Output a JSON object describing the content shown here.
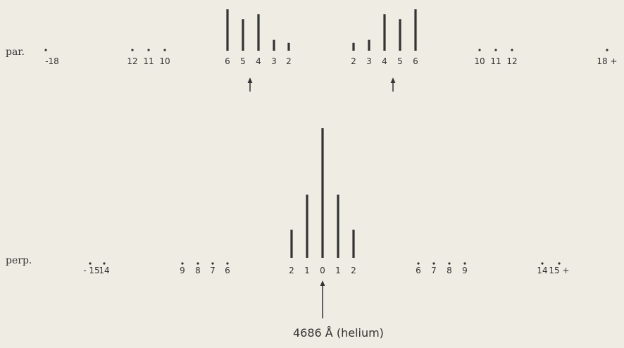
{
  "rows": {
    "par": {
      "label": "par.",
      "components": [
        {
          "label": "-18",
          "height": 0
        },
        {
          "label": "12",
          "height": 0
        },
        {
          "label": "11",
          "height": 0
        },
        {
          "label": "10",
          "height": 0
        },
        {
          "label": "6",
          "height": 4.2
        },
        {
          "label": "5",
          "height": 3.2
        },
        {
          "label": "4",
          "height": 3.7
        },
        {
          "label": "3",
          "height": 1.1
        },
        {
          "label": "2",
          "height": 0.8
        },
        {
          "label": "2",
          "height": 0.8
        },
        {
          "label": "3",
          "height": 1.1
        },
        {
          "label": "4",
          "height": 3.7
        },
        {
          "label": "5",
          "height": 3.2
        },
        {
          "label": "6",
          "height": 4.2
        },
        {
          "label": "10",
          "height": 0
        },
        {
          "label": "11",
          "height": 0
        },
        {
          "label": "12",
          "height": 0
        },
        {
          "label": "18 +",
          "height": 0
        }
      ]
    },
    "perp": {
      "label": "perp.",
      "components": [
        {
          "label": "- 15",
          "height": 0
        },
        {
          "label": "14",
          "height": 0
        },
        {
          "label": "9",
          "height": 0
        },
        {
          "label": "8",
          "height": 0
        },
        {
          "label": "7",
          "height": 0
        },
        {
          "label": "6",
          "height": 0
        },
        {
          "label": "2",
          "height": 2.5
        },
        {
          "label": "1",
          "height": 5.6
        },
        {
          "label": "0",
          "height": 11.5
        },
        {
          "label": "1",
          "height": 5.6
        },
        {
          "label": "2",
          "height": 2.5
        },
        {
          "label": "6",
          "height": 0
        },
        {
          "label": "7",
          "height": 0
        },
        {
          "label": "8",
          "height": 0
        },
        {
          "label": "9",
          "height": 0
        },
        {
          "label": "14",
          "height": 0
        },
        {
          "label": "15 +",
          "height": 0
        }
      ]
    }
  },
  "annotation": "4686 Å (helium)"
}
